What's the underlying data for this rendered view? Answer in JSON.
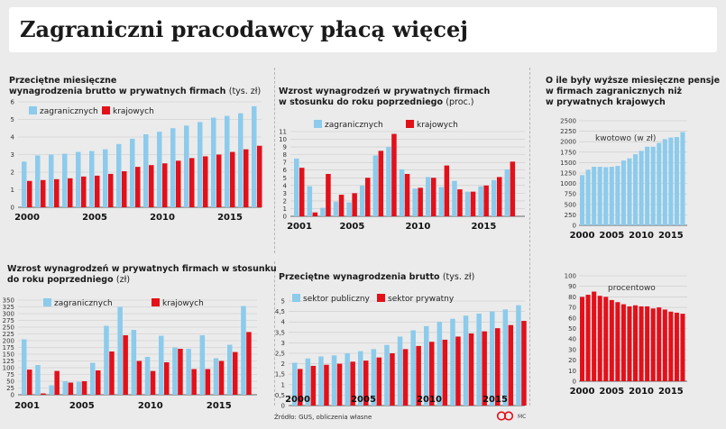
{
  "title": "Zagraniczni pracodawcy płacą więcej",
  "colors": {
    "foreign": "#8ccbec",
    "domestic": "#e3101a",
    "background": "#ebebeb"
  },
  "footer": {
    "source": "Źródło: GUS, obliczenia własne",
    "initials": "MC"
  },
  "chart_data": [
    {
      "id": "p1",
      "type": "bar",
      "title_line1": "Przeciętne miesięczne",
      "title_line2": "wynagrodzenia brutto w prywatnych firmach",
      "unit": "(tys. zł)",
      "years": [
        2000,
        2001,
        2002,
        2003,
        2004,
        2005,
        2006,
        2007,
        2008,
        2009,
        2010,
        2011,
        2012,
        2013,
        2014,
        2015,
        2016,
        2017
      ],
      "xticks": [
        2000,
        2005,
        2010,
        2015
      ],
      "yticks": [
        0,
        1,
        2,
        3,
        4,
        5,
        6
      ],
      "ylim": [
        0,
        6
      ],
      "series": [
        {
          "name": "zagranicznych",
          "key": "foreign",
          "values": [
            2.6,
            2.95,
            3.0,
            3.05,
            3.15,
            3.2,
            3.3,
            3.6,
            3.9,
            4.15,
            4.3,
            4.5,
            4.65,
            4.85,
            5.1,
            5.2,
            5.35,
            5.75
          ]
        },
        {
          "name": "krajowych",
          "key": "domestic",
          "values": [
            1.5,
            1.55,
            1.6,
            1.65,
            1.75,
            1.8,
            1.9,
            2.05,
            2.3,
            2.4,
            2.5,
            2.65,
            2.8,
            2.9,
            3.0,
            3.15,
            3.3,
            3.5
          ]
        }
      ]
    },
    {
      "id": "p2",
      "type": "bar",
      "title_line1": "Wzrost wynagrodzeń w prywatnych firmach",
      "title_line2": "w stosunku do roku poprzedniego",
      "unit": "(proc.)",
      "years": [
        2001,
        2002,
        2003,
        2004,
        2005,
        2006,
        2007,
        2008,
        2009,
        2010,
        2011,
        2012,
        2013,
        2014,
        2015,
        2016,
        2017
      ],
      "xticks": [
        2001,
        2005,
        2010,
        2015
      ],
      "yticks": [
        0,
        1,
        2,
        3,
        4,
        5,
        6,
        7,
        8,
        9,
        10,
        11
      ],
      "ylim": [
        0,
        11
      ],
      "series": [
        {
          "name": "zagranicznych",
          "key": "foreign",
          "values": [
            7.5,
            3.9,
            1.1,
            1.9,
            1.8,
            4.0,
            7.9,
            9.0,
            6.1,
            3.6,
            5.1,
            3.8,
            4.6,
            3.2,
            3.9,
            4.7,
            6.1
          ]
        },
        {
          "name": "krajowych",
          "key": "domestic",
          "values": [
            6.3,
            0.5,
            5.5,
            2.8,
            3.0,
            5.0,
            8.5,
            10.7,
            5.5,
            3.7,
            5.0,
            6.6,
            3.5,
            3.2,
            4.0,
            5.1,
            7.1
          ]
        }
      ]
    },
    {
      "id": "p3",
      "type": "bar",
      "title_line1": "O ile były wyższe miesięczne pensje",
      "title_line2": "w  firmach zagranicznych niż",
      "title_line3": "w prywatnych  krajowych",
      "years": [
        2000,
        2001,
        2002,
        2003,
        2004,
        2005,
        2006,
        2007,
        2008,
        2009,
        2010,
        2011,
        2012,
        2013,
        2014,
        2015,
        2016,
        2017
      ],
      "xticks": [
        2000,
        2005,
        2010,
        2015
      ],
      "subcharts": [
        {
          "label": "kwotowo (w zł)",
          "key": "foreign",
          "yticks": [
            0,
            250,
            500,
            750,
            1000,
            1250,
            1500,
            1750,
            2000,
            2250,
            2500
          ],
          "ylim": [
            0,
            2500
          ],
          "values": [
            1200,
            1330,
            1400,
            1400,
            1390,
            1400,
            1420,
            1550,
            1600,
            1700,
            1780,
            1880,
            1880,
            1970,
            2060,
            2100,
            2110,
            2230
          ]
        },
        {
          "label": "procentowo",
          "key": "domestic",
          "yticks": [
            0,
            10,
            20,
            30,
            40,
            50,
            60,
            70,
            80,
            90,
            100
          ],
          "ylim": [
            0,
            100
          ],
          "values": [
            80,
            82,
            85,
            81,
            80,
            77,
            75,
            73,
            71,
            72,
            71,
            71,
            69,
            70,
            68,
            66,
            65,
            64
          ]
        }
      ]
    },
    {
      "id": "p4",
      "type": "bar",
      "title_line1": "Wzrost wynagrodzeń w prywatnych firmach w stosunku",
      "title_line2": "do roku poprzedniego",
      "unit": "(zł)",
      "years": [
        2001,
        2002,
        2003,
        2004,
        2005,
        2006,
        2007,
        2008,
        2009,
        2010,
        2011,
        2012,
        2013,
        2014,
        2015,
        2016,
        2017
      ],
      "xticks": [
        2001,
        2005,
        2010,
        2015
      ],
      "yticks": [
        0,
        25,
        50,
        75,
        100,
        125,
        150,
        175,
        200,
        225,
        250,
        275,
        300,
        325,
        350
      ],
      "ylim": [
        0,
        350
      ],
      "series": [
        {
          "name": "zagranicznych",
          "key": "foreign",
          "values": [
            205,
            110,
            35,
            50,
            48,
            118,
            255,
            325,
            240,
            140,
            218,
            175,
            170,
            220,
            135,
            185,
            328
          ]
        },
        {
          "name": "krajowych",
          "key": "domestic",
          "values": [
            93,
            5,
            88,
            45,
            50,
            90,
            160,
            220,
            125,
            88,
            120,
            170,
            95,
            95,
            125,
            158,
            232
          ]
        }
      ]
    },
    {
      "id": "p5",
      "type": "bar",
      "title_line1": "Przeciętne wynagrodzenia brutto",
      "unit": "(tys. zł)",
      "years": [
        2000,
        2001,
        2002,
        2003,
        2004,
        2005,
        2006,
        2007,
        2008,
        2009,
        2010,
        2011,
        2012,
        2013,
        2014,
        2015,
        2016,
        2017
      ],
      "xticks": [
        2000,
        2005,
        2010,
        2015
      ],
      "yticks": [
        0,
        0.5,
        1.0,
        1.5,
        2.0,
        2.5,
        3.0,
        3.5,
        4.0,
        4.5,
        5.0
      ],
      "ylim": [
        0,
        5
      ],
      "series": [
        {
          "name": "sektor publiczny",
          "key": "foreign",
          "values": [
            2.05,
            2.25,
            2.35,
            2.4,
            2.5,
            2.6,
            2.7,
            2.9,
            3.3,
            3.6,
            3.8,
            4.0,
            4.15,
            4.3,
            4.4,
            4.5,
            4.6,
            4.8
          ]
        },
        {
          "name": "sektor prywatny",
          "key": "domestic",
          "values": [
            1.75,
            1.9,
            1.95,
            2.0,
            2.1,
            2.15,
            2.3,
            2.5,
            2.7,
            2.85,
            3.05,
            3.15,
            3.3,
            3.45,
            3.55,
            3.7,
            3.85,
            4.05
          ]
        }
      ]
    }
  ]
}
